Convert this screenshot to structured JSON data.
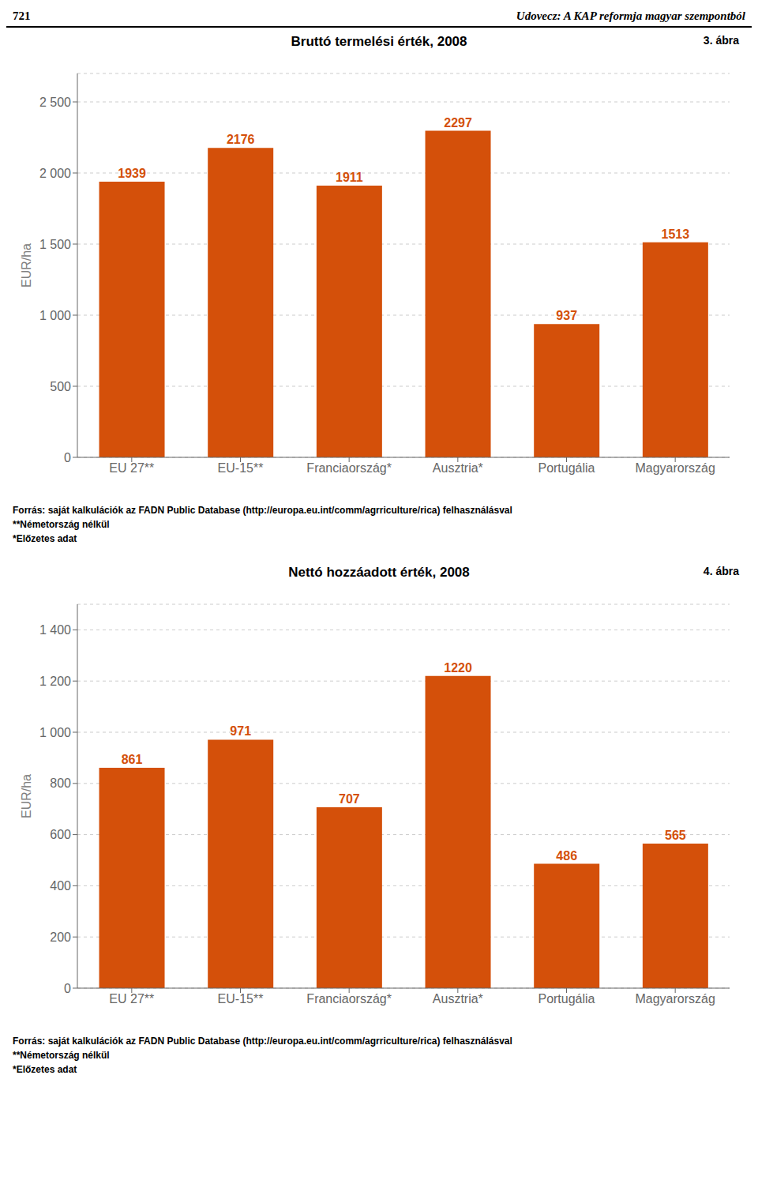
{
  "annotations": [
    "721",
    "Udovecz: A KAP reformja magyar szempontból"
  ],
  "chart_data": [
    {
      "type": "bar",
      "title": "Bruttó termelési érték, 2008",
      "annotations": [
        "3. ábra",
        "Forrás: saját kalkulációk az FADN Public Database (http://europa.eu.int/comm/agrriculture/rica) felhasználásval",
        "**Németország nélkül",
        "*Előzetes adat"
      ],
      "categories": [
        "EU 27**",
        "EU-15**",
        "Franciaország*",
        "Ausztria*",
        "Portugália",
        "Magyarország"
      ],
      "values": [
        1939,
        2176,
        1911,
        2297,
        937,
        1513
      ],
      "color": "#D4500A",
      "ylabel": "EUR/ha",
      "ylim": [
        0,
        2700
      ],
      "yticks": [
        0,
        500,
        {
          "value": 1000,
          "label": "1 000"
        },
        {
          "value": 1500,
          "label": "1 500"
        },
        {
          "value": 2000,
          "label": "2 000"
        },
        {
          "value": 2500,
          "label": "2 500"
        }
      ],
      "grid": true,
      "data_labels": true
    },
    {
      "type": "bar",
      "title": "Nettó hozzáadott érték, 2008",
      "annotations": [
        "4. ábra",
        "Forrás: saját kalkulációk az FADN Public Database (http://europa.eu.int/comm/agrriculture/rica) felhasználásval",
        "**Németország nélkül",
        "*Előzetes adat"
      ],
      "categories": [
        "EU 27**",
        "EU-15**",
        "Franciaország*",
        "Ausztria*",
        "Portugália",
        "Magyarország"
      ],
      "values": [
        861,
        971,
        707,
        1220,
        486,
        565
      ],
      "color": "#D4500A",
      "ylabel": "EUR/ha",
      "ylim": [
        0,
        1500
      ],
      "yticks": [
        0,
        200,
        400,
        600,
        800,
        {
          "value": 1000,
          "label": "1 000"
        },
        {
          "value": 1200,
          "label": "1 200"
        },
        {
          "value": 1400,
          "label": "1 400"
        }
      ],
      "grid": true,
      "data_labels": true
    }
  ]
}
